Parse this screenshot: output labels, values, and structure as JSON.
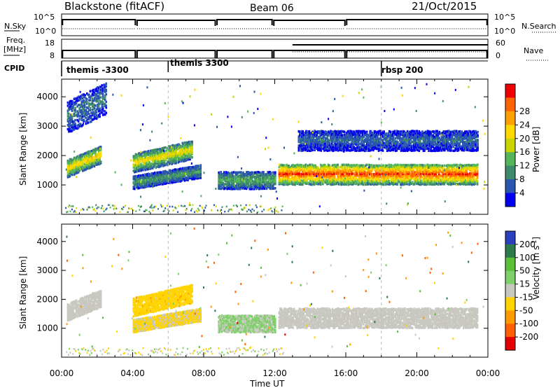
{
  "header": {
    "station": "Blackstone (fitACF)",
    "beam": "Beam 06",
    "date": "21/Oct/2015"
  },
  "noise_panel": {
    "left_label": "N.Sky",
    "left_ticks": [
      "10^5",
      "10^0"
    ],
    "right_ticks": [
      "10^5",
      "10^0"
    ],
    "right_label": "N.Search"
  },
  "freq_panel": {
    "left_label_1": "Freq.",
    "left_label_2": "[MHz]",
    "left_ticks": [
      "18",
      "8"
    ],
    "right_ticks": [
      "60",
      "0"
    ],
    "right_label": "Nave"
  },
  "cpid_panel": {
    "label": "CPID",
    "modes": [
      {
        "name": "themis -3300",
        "start_hour": 0
      },
      {
        "name": "themis 3300",
        "start_hour": 6
      },
      {
        "name": "rbsp 200",
        "start_hour": 18
      }
    ]
  },
  "colors": {
    "power_scale": [
      "#0000ee",
      "#2a56b0",
      "#3e8a6a",
      "#55b55a",
      "#c9d400",
      "#ffd800",
      "#ffa000",
      "#ff6400",
      "#ee0000"
    ],
    "velocity_scale": [
      "#2b3fbf",
      "#2e7a4a",
      "#5cbf3a",
      "#7fd06a",
      "#c8c8c0",
      "#ffd400",
      "#ff9b00",
      "#ff6000",
      "#e40000"
    ]
  },
  "chart_data": [
    {
      "type": "heatmap",
      "title": "Power",
      "xlabel": "Time UT",
      "ylabel": "Slant Range [km]",
      "x_ticks": [
        "00:00",
        "04:00",
        "08:00",
        "12:00",
        "16:00",
        "20:00",
        "00:00"
      ],
      "xlim_hours": [
        0,
        24
      ],
      "y_ticks": [
        1000,
        2000,
        3000,
        4000
      ],
      "ylim_km": [
        0,
        4600
      ],
      "colorbar": {
        "label": "Power [dB]",
        "ticks": [
          "4",
          "8",
          "12",
          "16",
          "20",
          "24",
          "28"
        ],
        "range": [
          0,
          30
        ]
      },
      "echo_bands": [
        {
          "t": [
            0.3,
            2.2
          ],
          "range_km": [
            1300,
            1900
          ],
          "slope_km_per_h": 250,
          "strength_dB": 15
        },
        {
          "t": [
            0.3,
            2.5
          ],
          "range_km": [
            2800,
            3900
          ],
          "slope_km_per_h": 300,
          "strength_dB": 6
        },
        {
          "t": [
            4.0,
            7.3
          ],
          "range_km": [
            1450,
            2100
          ],
          "slope_km_per_h": 140,
          "strength_dB": 14
        },
        {
          "t": [
            4.0,
            7.8
          ],
          "range_km": [
            900,
            1350
          ],
          "slope_km_per_h": 100,
          "strength_dB": 8
        },
        {
          "t": [
            8.8,
            12.0
          ],
          "range_km": [
            900,
            1500
          ],
          "slope_km_per_h": 0,
          "strength_dB": 9
        },
        {
          "t": [
            12.2,
            23.4
          ],
          "range_km": [
            1050,
            1750
          ],
          "slope_km_per_h": 0,
          "strength_dB": 22
        },
        {
          "t": [
            13.3,
            23.4
          ],
          "range_km": [
            2200,
            2900
          ],
          "slope_km_per_h": 0,
          "strength_dB": 5
        }
      ]
    },
    {
      "type": "heatmap",
      "title": "Velocity",
      "xlabel": "Time UT",
      "ylabel": "Slant Range [km]",
      "x_ticks": [
        "00:00",
        "04:00",
        "08:00",
        "12:00",
        "16:00",
        "20:00",
        "00:00"
      ],
      "xlim_hours": [
        0,
        24
      ],
      "y_ticks": [
        1000,
        2000,
        3000,
        4000
      ],
      "ylim_km": [
        0,
        4600
      ],
      "colorbar": {
        "label": "Velocity [m s^-1]",
        "ticks": [
          "200",
          "100",
          "50",
          "15",
          "-15",
          "-50",
          "-100",
          "-200"
        ],
        "range": [
          -250,
          250
        ]
      },
      "echo_bands": [
        {
          "t": [
            0.3,
            2.2
          ],
          "range_km": [
            1300,
            1900
          ],
          "slope_km_per_h": 250,
          "velocity_ms": 0
        },
        {
          "t": [
            4.0,
            7.3
          ],
          "range_km": [
            1450,
            2100
          ],
          "slope_km_per_h": 140,
          "velocity_ms": -70
        },
        {
          "t": [
            4.0,
            7.8
          ],
          "range_km": [
            900,
            1350
          ],
          "slope_km_per_h": 100,
          "velocity_ms": -40
        },
        {
          "t": [
            8.8,
            12.0
          ],
          "range_km": [
            900,
            1500
          ],
          "slope_km_per_h": 0,
          "velocity_ms": 40
        },
        {
          "t": [
            12.2,
            23.4
          ],
          "range_km": [
            1050,
            1750
          ],
          "slope_km_per_h": 0,
          "velocity_ms": 0
        }
      ]
    }
  ]
}
